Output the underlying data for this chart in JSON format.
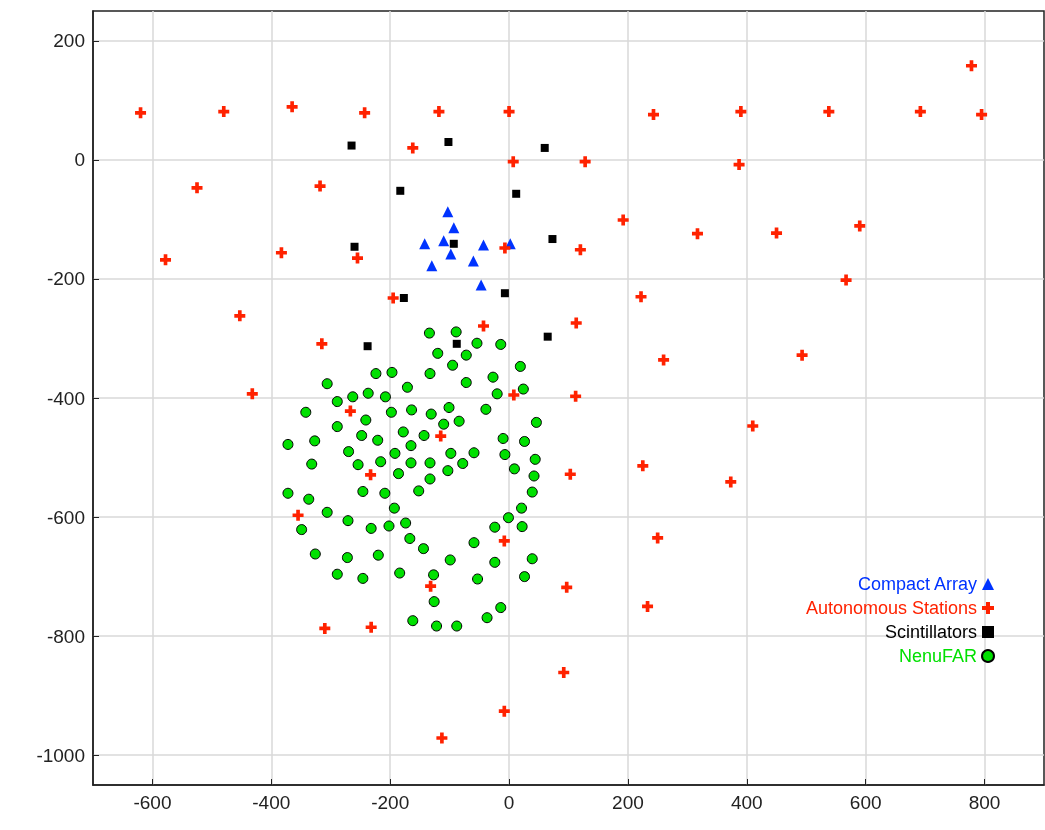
{
  "chart_data": {
    "type": "scatter",
    "xlim": [
      -700,
      900
    ],
    "ylim": [
      -1050,
      250
    ],
    "xticks": [
      -600,
      -400,
      -200,
      0,
      200,
      400,
      600,
      800
    ],
    "yticks": [
      -1000,
      -800,
      -600,
      -400,
      -200,
      0,
      200
    ],
    "grid": true,
    "legend": "bottom right",
    "series": [
      {
        "name": "Compact Array",
        "color": "#0033ff",
        "marker": "triangle",
        "x": [
          -103,
          -93,
          -142,
          -110,
          -98,
          -130,
          -43,
          -60,
          -47,
          2
        ],
        "values": [
          -87,
          -114,
          -141,
          -136,
          -158,
          -178,
          -143,
          -170,
          -210,
          -141
        ]
      },
      {
        "name": "Autonomous Stations",
        "color": "#ff2200",
        "marker": "cross",
        "x": [
          -620,
          -480,
          -365,
          -243,
          -118,
          0,
          243,
          390,
          538,
          692,
          778,
          795,
          -525,
          -318,
          -162,
          7,
          128,
          387,
          192,
          317,
          450,
          590,
          -578,
          -383,
          -255,
          -7,
          120,
          -195,
          222,
          567,
          -453,
          -315,
          -43,
          113,
          260,
          493,
          -432,
          8,
          112,
          -267,
          -115,
          -233,
          103,
          225,
          373,
          410,
          -355,
          -8,
          250,
          -132,
          97,
          233,
          -310,
          -232,
          92,
          -8,
          -113
        ],
        "values": [
          79,
          81,
          89,
          79,
          81,
          81,
          76,
          81,
          81,
          81,
          158,
          76,
          -47,
          -44,
          20,
          -3,
          -3,
          -8,
          -101,
          -124,
          -123,
          -111,
          -168,
          -156,
          -165,
          -148,
          -151,
          -232,
          -230,
          -202,
          -262,
          -309,
          -279,
          -274,
          -336,
          -328,
          -393,
          -395,
          -397,
          -422,
          -464,
          -529,
          -528,
          -514,
          -541,
          -447,
          -597,
          -640,
          -635,
          -716,
          -718,
          -750,
          -787,
          -785,
          -861,
          -926,
          -971
        ]
      },
      {
        "name": "Scintillators",
        "color": "#000000",
        "marker": "square",
        "x": [
          -265,
          -102,
          60,
          -183,
          12,
          -260,
          -93,
          73,
          -177,
          -7,
          65,
          -238,
          -88
        ],
        "values": [
          24,
          30,
          20,
          -52,
          -57,
          -146,
          -141,
          -133,
          -232,
          -224,
          -297,
          -313,
          -309
        ]
      },
      {
        "name": "NenuFAR",
        "color": "#00e000",
        "marker": "circle",
        "x": [
          -134,
          -89,
          -54,
          -14,
          -120,
          -72,
          -95,
          19,
          -224,
          -197,
          -133,
          -27,
          -72,
          -306,
          -171,
          24,
          -20,
          -237,
          -263,
          -208,
          -289,
          -342,
          -198,
          -164,
          -131,
          -101,
          -39,
          -241,
          -110,
          -84,
          46,
          -289,
          -178,
          -248,
          -221,
          -143,
          -10,
          26,
          -372,
          -327,
          -165,
          -270,
          -192,
          -98,
          -59,
          -7,
          44,
          -332,
          -254,
          -216,
          -165,
          -133,
          -78,
          9,
          -103,
          -186,
          42,
          -133,
          -246,
          -209,
          -152,
          39,
          -372,
          -337,
          -193,
          21,
          -306,
          -1,
          -271,
          -202,
          -174,
          -349,
          -232,
          -24,
          22,
          -167,
          -144,
          -59,
          -326,
          -272,
          -220,
          -99,
          -24,
          39,
          -289,
          -246,
          -184,
          -127,
          -53,
          26,
          -126,
          -14,
          -37,
          -162,
          -122,
          -88
        ],
        "values": [
          -291,
          -289,
          -308,
          -310,
          -325,
          -328,
          -345,
          -347,
          -359,
          -357,
          -359,
          -365,
          -374,
          -376,
          -382,
          -385,
          -393,
          -392,
          -398,
          -398,
          -406,
          -424,
          -424,
          -420,
          -427,
          -416,
          -419,
          -437,
          -444,
          -439,
          -441,
          -448,
          -457,
          -463,
          -471,
          -463,
          -468,
          -473,
          -478,
          -472,
          -480,
          -490,
          -493,
          -493,
          -492,
          -495,
          -503,
          -511,
          -512,
          -507,
          -509,
          -509,
          -510,
          -519,
          -522,
          -527,
          -531,
          -536,
          -557,
          -560,
          -556,
          -558,
          -560,
          -570,
          -585,
          -585,
          -592,
          -601,
          -606,
          -615,
          -610,
          -621,
          -619,
          -617,
          -616,
          -636,
          -653,
          -643,
          -662,
          -668,
          -664,
          -672,
          -676,
          -670,
          -696,
          -703,
          -694,
          -697,
          -704,
          -700,
          -742,
          -752,
          -769,
          -774,
          -783,
          -783
        ]
      }
    ]
  }
}
